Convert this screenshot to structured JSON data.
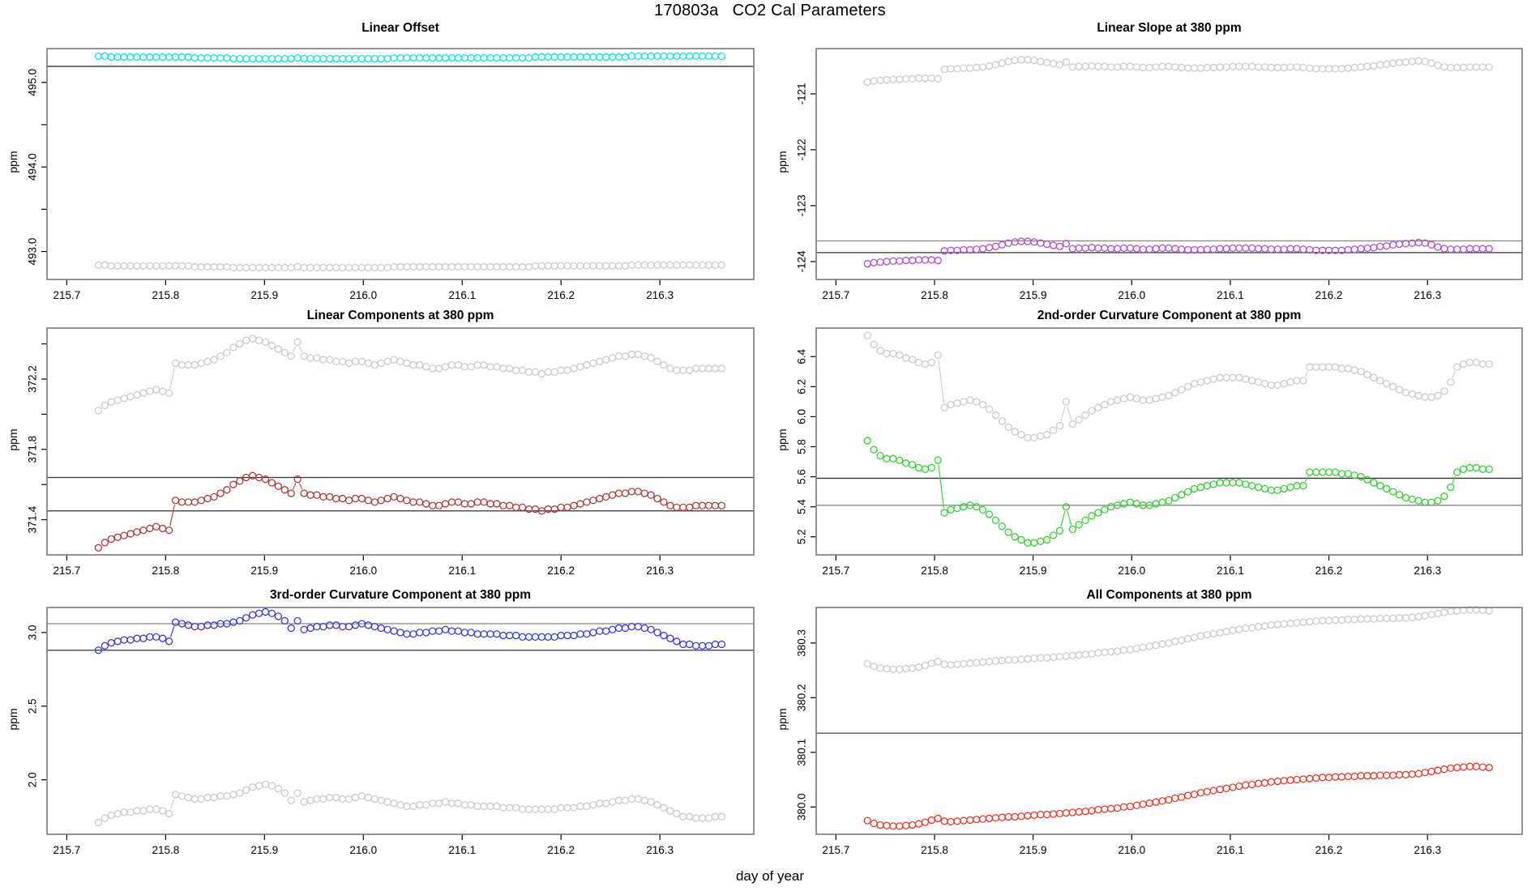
{
  "header": {
    "title": "170803a   CO2 Cal Parameters"
  },
  "footer": {
    "xlabel": "day of year"
  },
  "chart_data": [
    {
      "type": "scatter",
      "title": "Linear Offset",
      "ylabel": "ppm",
      "xlim": [
        215.68,
        216.395
      ],
      "ylim": [
        492.67,
        495.4
      ],
      "xticks": {
        "values": [
          215.7,
          215.8,
          215.9,
          216.0,
          216.1,
          216.2,
          216.3
        ],
        "labels": [
          "215.7",
          "215.8",
          "215.9",
          "216.0",
          "216.1",
          "216.2",
          "216.3"
        ]
      },
      "yticks": {
        "values": [
          493.0,
          493.5,
          494.0,
          494.5,
          495.0
        ],
        "labels": [
          "493.0",
          "",
          "494.0",
          "",
          "495.0"
        ]
      },
      "hlines": [
        {
          "y": 495.19,
          "color": "#333333"
        }
      ],
      "x0": 215.732,
      "dx": 0.0065,
      "n": 98,
      "series": [
        {
          "name": "cal-value",
          "color": "#00E5E5",
          "y": [
            495.31,
            495.31,
            495.3,
            495.3,
            495.3,
            495.3,
            495.3,
            495.3,
            495.3,
            495.3,
            495.3,
            495.3,
            495.3,
            495.3,
            495.3,
            495.29,
            495.29,
            495.29,
            495.29,
            495.29,
            495.29,
            495.28,
            495.28,
            495.28,
            495.28,
            495.28,
            495.28,
            495.28,
            495.28,
            495.28,
            495.28,
            495.29,
            495.28,
            495.28,
            495.28,
            495.28,
            495.28,
            495.28,
            495.28,
            495.28,
            495.28,
            495.28,
            495.28,
            495.28,
            495.28,
            495.28,
            495.29,
            495.29,
            495.29,
            495.29,
            495.29,
            495.29,
            495.29,
            495.29,
            495.29,
            495.29,
            495.29,
            495.29,
            495.29,
            495.29,
            495.29,
            495.29,
            495.29,
            495.29,
            495.29,
            495.29,
            495.29,
            495.29,
            495.3,
            495.3,
            495.3,
            495.3,
            495.3,
            495.3,
            495.3,
            495.3,
            495.3,
            495.3,
            495.3,
            495.3,
            495.3,
            495.3,
            495.3,
            495.31,
            495.31,
            495.31,
            495.31,
            495.31,
            495.31,
            495.31,
            495.31,
            495.31,
            495.31,
            495.31,
            495.31,
            495.31,
            495.31,
            495.31
          ]
        },
        {
          "name": "reference",
          "color": "#CCCCCC",
          "offset_from_primary": -2.47
        }
      ]
    },
    {
      "type": "scatter",
      "title": "Linear Slope at 380 ppm",
      "ylabel": "ppm",
      "xlim": [
        215.68,
        216.396
      ],
      "ylim": [
        -124.32,
        -120.19
      ],
      "xticks": {
        "values": [
          215.7,
          215.8,
          215.9,
          216.0,
          216.1,
          216.2,
          216.3
        ],
        "labels": [
          "215.7",
          "215.8",
          "215.9",
          "216.0",
          "216.1",
          "216.2",
          "216.3"
        ]
      },
      "yticks": {
        "values": [
          -124,
          -123,
          -122,
          -121
        ],
        "labels": [
          "-124",
          "-123",
          "-122",
          "-121"
        ]
      },
      "hlines": [
        {
          "y": -123.63,
          "color": "#888888"
        },
        {
          "y": -123.84,
          "color": "#333333"
        }
      ],
      "x0": 215.732,
      "dx": 0.0065,
      "n": 98,
      "series": [
        {
          "name": "cal-value",
          "color": "#AE4CD9",
          "y": [
            -124.04,
            -124.02,
            -124.01,
            -124.0,
            -123.99,
            -123.99,
            -123.98,
            -123.98,
            -123.97,
            -123.97,
            -123.97,
            -123.98,
            -123.81,
            -123.8,
            -123.8,
            -123.79,
            -123.79,
            -123.78,
            -123.77,
            -123.75,
            -123.73,
            -123.7,
            -123.67,
            -123.65,
            -123.64,
            -123.64,
            -123.65,
            -123.67,
            -123.69,
            -123.71,
            -123.73,
            -123.68,
            -123.77,
            -123.76,
            -123.76,
            -123.75,
            -123.76,
            -123.76,
            -123.77,
            -123.77,
            -123.76,
            -123.76,
            -123.77,
            -123.78,
            -123.78,
            -123.77,
            -123.76,
            -123.76,
            -123.77,
            -123.78,
            -123.79,
            -123.79,
            -123.79,
            -123.78,
            -123.78,
            -123.77,
            -123.77,
            -123.76,
            -123.76,
            -123.76,
            -123.76,
            -123.77,
            -123.77,
            -123.78,
            -123.78,
            -123.78,
            -123.77,
            -123.77,
            -123.78,
            -123.79,
            -123.8,
            -123.8,
            -123.8,
            -123.8,
            -123.8,
            -123.79,
            -123.78,
            -123.77,
            -123.76,
            -123.75,
            -123.73,
            -123.72,
            -123.7,
            -123.69,
            -123.68,
            -123.67,
            -123.66,
            -123.67,
            -123.7,
            -123.74,
            -123.77,
            -123.78,
            -123.78,
            -123.78,
            -123.77,
            -123.77,
            -123.77,
            -123.77
          ]
        },
        {
          "name": "reference",
          "color": "#CCCCCC",
          "offset_from_primary": 3.25
        }
      ]
    },
    {
      "type": "scatter",
      "title": "Linear Components at 380 ppm",
      "ylabel": "ppm",
      "xlim": [
        215.68,
        216.395
      ],
      "ylim": [
        371.2,
        372.49
      ],
      "xticks": {
        "values": [
          215.7,
          215.8,
          215.9,
          216.0,
          216.1,
          216.2,
          216.3
        ],
        "labels": [
          "215.7",
          "215.8",
          "215.9",
          "216.0",
          "216.1",
          "216.2",
          "216.3"
        ]
      },
      "yticks": {
        "values": [
          371.4,
          371.6,
          371.8,
          372.0,
          372.2,
          372.4
        ],
        "labels": [
          "371.4",
          "",
          "371.8",
          "",
          "372.2",
          ""
        ]
      },
      "hlines": [
        {
          "y": 371.64,
          "color": "#333333"
        },
        {
          "y": 371.45,
          "color": "#333333"
        }
      ],
      "x0": 215.732,
      "dx": 0.0065,
      "n": 98,
      "series": [
        {
          "name": "cal-value",
          "color": "#AF3A3A",
          "y": [
            371.24,
            371.27,
            371.29,
            371.3,
            371.31,
            371.32,
            371.33,
            371.34,
            371.35,
            371.36,
            371.35,
            371.34,
            371.51,
            371.5,
            371.5,
            371.5,
            371.51,
            371.52,
            371.53,
            371.55,
            371.57,
            371.6,
            371.62,
            371.64,
            371.65,
            371.64,
            371.63,
            371.61,
            371.59,
            371.57,
            371.55,
            371.63,
            371.55,
            371.54,
            371.54,
            371.53,
            371.53,
            371.52,
            371.52,
            371.51,
            371.52,
            371.52,
            371.51,
            371.5,
            371.51,
            371.52,
            371.53,
            371.52,
            371.51,
            371.5,
            371.5,
            371.49,
            371.48,
            371.48,
            371.49,
            371.5,
            371.5,
            371.49,
            371.49,
            371.5,
            371.5,
            371.49,
            371.49,
            371.48,
            371.48,
            371.47,
            371.47,
            371.46,
            371.46,
            371.45,
            371.46,
            371.46,
            371.47,
            371.47,
            371.48,
            371.49,
            371.5,
            371.51,
            371.52,
            371.53,
            371.54,
            371.55,
            371.55,
            371.56,
            371.56,
            371.55,
            371.54,
            371.52,
            371.5,
            371.48,
            371.47,
            371.47,
            371.47,
            371.48,
            371.48,
            371.48,
            371.48,
            371.48
          ]
        },
        {
          "name": "reference",
          "color": "#CCCCCC",
          "offset_from_primary": 0.78
        }
      ]
    },
    {
      "type": "scatter",
      "title": "2nd-order Curvature Component at 380 ppm",
      "ylabel": "ppm",
      "xlim": [
        215.68,
        216.396
      ],
      "ylim": [
        5.08,
        6.59
      ],
      "xticks": {
        "values": [
          215.7,
          215.8,
          215.9,
          216.0,
          216.1,
          216.2,
          216.3
        ],
        "labels": [
          "215.7",
          "215.8",
          "215.9",
          "216.0",
          "216.1",
          "216.2",
          "216.3"
        ]
      },
      "yticks": {
        "values": [
          5.2,
          5.4,
          5.6,
          5.8,
          6.0,
          6.2,
          6.4
        ],
        "labels": [
          "5.2",
          "5.4",
          "5.6",
          "5.8",
          "6.0",
          "6.2",
          "6.4"
        ]
      },
      "hlines": [
        {
          "y": 5.59,
          "color": "#333333"
        },
        {
          "y": 5.41,
          "color": "#888888"
        }
      ],
      "x0": 215.732,
      "dx": 0.0065,
      "n": 98,
      "series": [
        {
          "name": "cal-value",
          "color": "#2ED32E",
          "y": [
            5.84,
            5.78,
            5.74,
            5.72,
            5.72,
            5.71,
            5.69,
            5.68,
            5.66,
            5.65,
            5.66,
            5.71,
            5.36,
            5.38,
            5.39,
            5.4,
            5.41,
            5.4,
            5.38,
            5.35,
            5.31,
            5.27,
            5.23,
            5.2,
            5.18,
            5.16,
            5.16,
            5.17,
            5.18,
            5.21,
            5.24,
            5.4,
            5.25,
            5.28,
            5.31,
            5.34,
            5.36,
            5.38,
            5.4,
            5.41,
            5.42,
            5.43,
            5.42,
            5.41,
            5.41,
            5.42,
            5.43,
            5.44,
            5.46,
            5.48,
            5.5,
            5.52,
            5.53,
            5.54,
            5.55,
            5.56,
            5.56,
            5.56,
            5.56,
            5.55,
            5.54,
            5.53,
            5.52,
            5.51,
            5.51,
            5.52,
            5.53,
            5.54,
            5.54,
            5.63,
            5.63,
            5.63,
            5.63,
            5.63,
            5.62,
            5.62,
            5.61,
            5.6,
            5.58,
            5.56,
            5.54,
            5.52,
            5.5,
            5.48,
            5.46,
            5.45,
            5.44,
            5.43,
            5.43,
            5.44,
            5.47,
            5.53,
            5.63,
            5.65,
            5.66,
            5.66,
            5.65,
            5.65
          ]
        },
        {
          "name": "reference",
          "color": "#CCCCCC",
          "offset_from_primary": 0.7
        }
      ]
    },
    {
      "type": "scatter",
      "title": "3rd-order Curvature Component at 380 ppm",
      "ylabel": "ppm",
      "xlim": [
        215.68,
        216.395
      ],
      "ylim": [
        1.63,
        3.17
      ],
      "xticks": {
        "values": [
          215.7,
          215.8,
          215.9,
          216.0,
          216.1,
          216.2,
          216.3
        ],
        "labels": [
          "215.7",
          "215.8",
          "215.9",
          "216.0",
          "216.1",
          "216.2",
          "216.3"
        ]
      },
      "yticks": {
        "values": [
          2.0,
          2.5,
          3.0
        ],
        "labels": [
          "2.0",
          "2.5",
          "3.0"
        ]
      },
      "hlines": [
        {
          "y": 3.06,
          "color": "#888888"
        },
        {
          "y": 2.88,
          "color": "#333333"
        }
      ],
      "x0": 215.732,
      "dx": 0.0065,
      "n": 98,
      "series": [
        {
          "name": "cal-value",
          "color": "#3939DD",
          "y": [
            2.88,
            2.91,
            2.93,
            2.94,
            2.95,
            2.95,
            2.96,
            2.96,
            2.97,
            2.97,
            2.96,
            2.94,
            3.07,
            3.06,
            3.05,
            3.04,
            3.04,
            3.05,
            3.05,
            3.06,
            3.06,
            3.07,
            3.08,
            3.1,
            3.12,
            3.13,
            3.14,
            3.13,
            3.11,
            3.08,
            3.03,
            3.08,
            3.02,
            3.03,
            3.04,
            3.04,
            3.05,
            3.05,
            3.04,
            3.04,
            3.05,
            3.06,
            3.05,
            3.04,
            3.03,
            3.02,
            3.01,
            3.0,
            2.99,
            2.99,
            3.0,
            3.0,
            3.01,
            3.01,
            3.02,
            3.01,
            3.01,
            3.0,
            3.0,
            2.99,
            2.99,
            2.99,
            2.99,
            2.98,
            2.98,
            2.98,
            2.97,
            2.97,
            2.97,
            2.97,
            2.97,
            2.97,
            2.98,
            2.98,
            2.98,
            2.99,
            2.99,
            3.0,
            3.01,
            3.01,
            3.02,
            3.03,
            3.03,
            3.04,
            3.04,
            3.03,
            3.02,
            3.0,
            2.98,
            2.96,
            2.94,
            2.92,
            2.92,
            2.91,
            2.91,
            2.91,
            2.92,
            2.92
          ]
        },
        {
          "name": "reference",
          "color": "#CCCCCC",
          "offset_from_primary": -1.17
        }
      ]
    },
    {
      "type": "scatter",
      "title": "All Components at 380 ppm",
      "ylabel": "ppm",
      "xlim": [
        215.68,
        216.396
      ],
      "ylim": [
        379.95,
        380.365
      ],
      "xticks": {
        "values": [
          215.7,
          215.8,
          215.9,
          216.0,
          216.1,
          216.2,
          216.3
        ],
        "labels": [
          "215.7",
          "215.8",
          "215.9",
          "216.0",
          "216.1",
          "216.2",
          "216.3"
        ]
      },
      "yticks": {
        "values": [
          380.0,
          380.1,
          380.2,
          380.3
        ],
        "labels": [
          "380.0",
          "380.1",
          "380.2",
          "380.3"
        ]
      },
      "hlines": [
        {
          "y": 380.135,
          "color": "#555555"
        }
      ],
      "x0": 215.732,
      "dx": 0.0065,
      "n": 98,
      "series": [
        {
          "name": "cal-value",
          "color": "#EE3322",
          "y": [
            379.975,
            379.97,
            379.967,
            379.966,
            379.965,
            379.965,
            379.966,
            379.967,
            379.969,
            379.972,
            379.976,
            379.979,
            379.974,
            379.973,
            379.974,
            379.975,
            379.976,
            379.977,
            379.978,
            379.979,
            379.98,
            379.981,
            379.982,
            379.982,
            379.983,
            379.984,
            379.985,
            379.986,
            379.986,
            379.987,
            379.988,
            379.989,
            379.99,
            379.991,
            379.992,
            379.993,
            379.995,
            379.996,
            379.997,
            379.998,
            380.0,
            380.001,
            380.003,
            380.005,
            380.007,
            380.009,
            380.011,
            380.013,
            380.016,
            380.018,
            380.021,
            380.023,
            380.026,
            380.028,
            380.03,
            380.032,
            380.034,
            380.036,
            380.038,
            380.04,
            380.041,
            380.043,
            380.044,
            380.046,
            380.047,
            380.048,
            380.049,
            380.05,
            380.051,
            380.052,
            380.053,
            380.054,
            380.054,
            380.055,
            380.055,
            380.056,
            380.056,
            380.057,
            380.057,
            380.057,
            380.058,
            380.058,
            380.058,
            380.059,
            380.059,
            380.06,
            380.061,
            380.063,
            380.065,
            380.067,
            380.069,
            380.071,
            380.072,
            380.073,
            380.074,
            380.074,
            380.073,
            380.072
          ]
        },
        {
          "name": "reference",
          "color": "#CCCCCC",
          "offset_from_primary": 0.287
        }
      ]
    }
  ]
}
